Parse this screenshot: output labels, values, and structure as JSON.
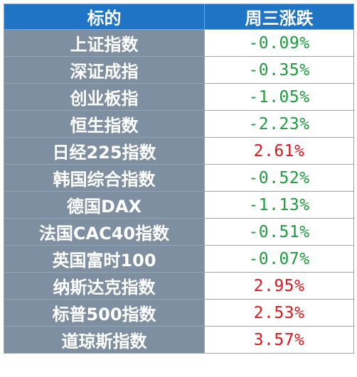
{
  "header": {
    "col_name": "标的",
    "col_change": "周三涨跌"
  },
  "colors": {
    "header_bg": "#1f74c6",
    "name_bg": "#7f8fa2",
    "up": "#e0161b",
    "down": "#1e9c3d"
  },
  "rows": [
    {
      "name": "上证指数",
      "change": "-0.09%",
      "direction": "down"
    },
    {
      "name": "深证成指",
      "change": "-0.35%",
      "direction": "down"
    },
    {
      "name": "创业板指",
      "change": "-1.05%",
      "direction": "down"
    },
    {
      "name": "恒生指数",
      "change": "-2.23%",
      "direction": "down"
    },
    {
      "name": "日经225指数",
      "change": "2.61%",
      "direction": "up"
    },
    {
      "name": "韩国综合指数",
      "change": "-0.52%",
      "direction": "down"
    },
    {
      "name": "德国DAX",
      "change": "-1.13%",
      "direction": "down"
    },
    {
      "name": "法国CAC40指数",
      "change": "-0.51%",
      "direction": "down"
    },
    {
      "name": "英国富时100",
      "change": "-0.07%",
      "direction": "down"
    },
    {
      "name": "纳斯达克指数",
      "change": "2.95%",
      "direction": "up"
    },
    {
      "name": "标普500指数",
      "change": "2.53%",
      "direction": "up"
    },
    {
      "name": "道琼斯指数",
      "change": "3.57%",
      "direction": "up"
    }
  ]
}
